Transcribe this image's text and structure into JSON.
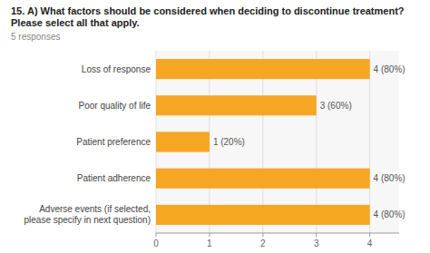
{
  "chart_data": {
    "type": "bar",
    "orientation": "horizontal",
    "title": "15. A) What factors should be considered when deciding to discontinue treatment? Please select all that apply.",
    "subtitle": "5 responses",
    "categories": [
      "Adverse events (if selected,\nplease specify in next question)",
      "Patient adherence",
      "Patient preference",
      "Poor quality of life",
      "Loss of response"
    ],
    "values": [
      4,
      4,
      1,
      3,
      4
    ],
    "value_labels": [
      "4 (80%)",
      "4 (80%)",
      "1 (20%)",
      "3 (60%)",
      "4 (80%)"
    ],
    "data_labels": true,
    "color": "#F5A623",
    "xlim": [
      0,
      4.55
    ],
    "xticks": [
      0,
      1,
      2,
      3,
      4
    ],
    "grid": true
  }
}
